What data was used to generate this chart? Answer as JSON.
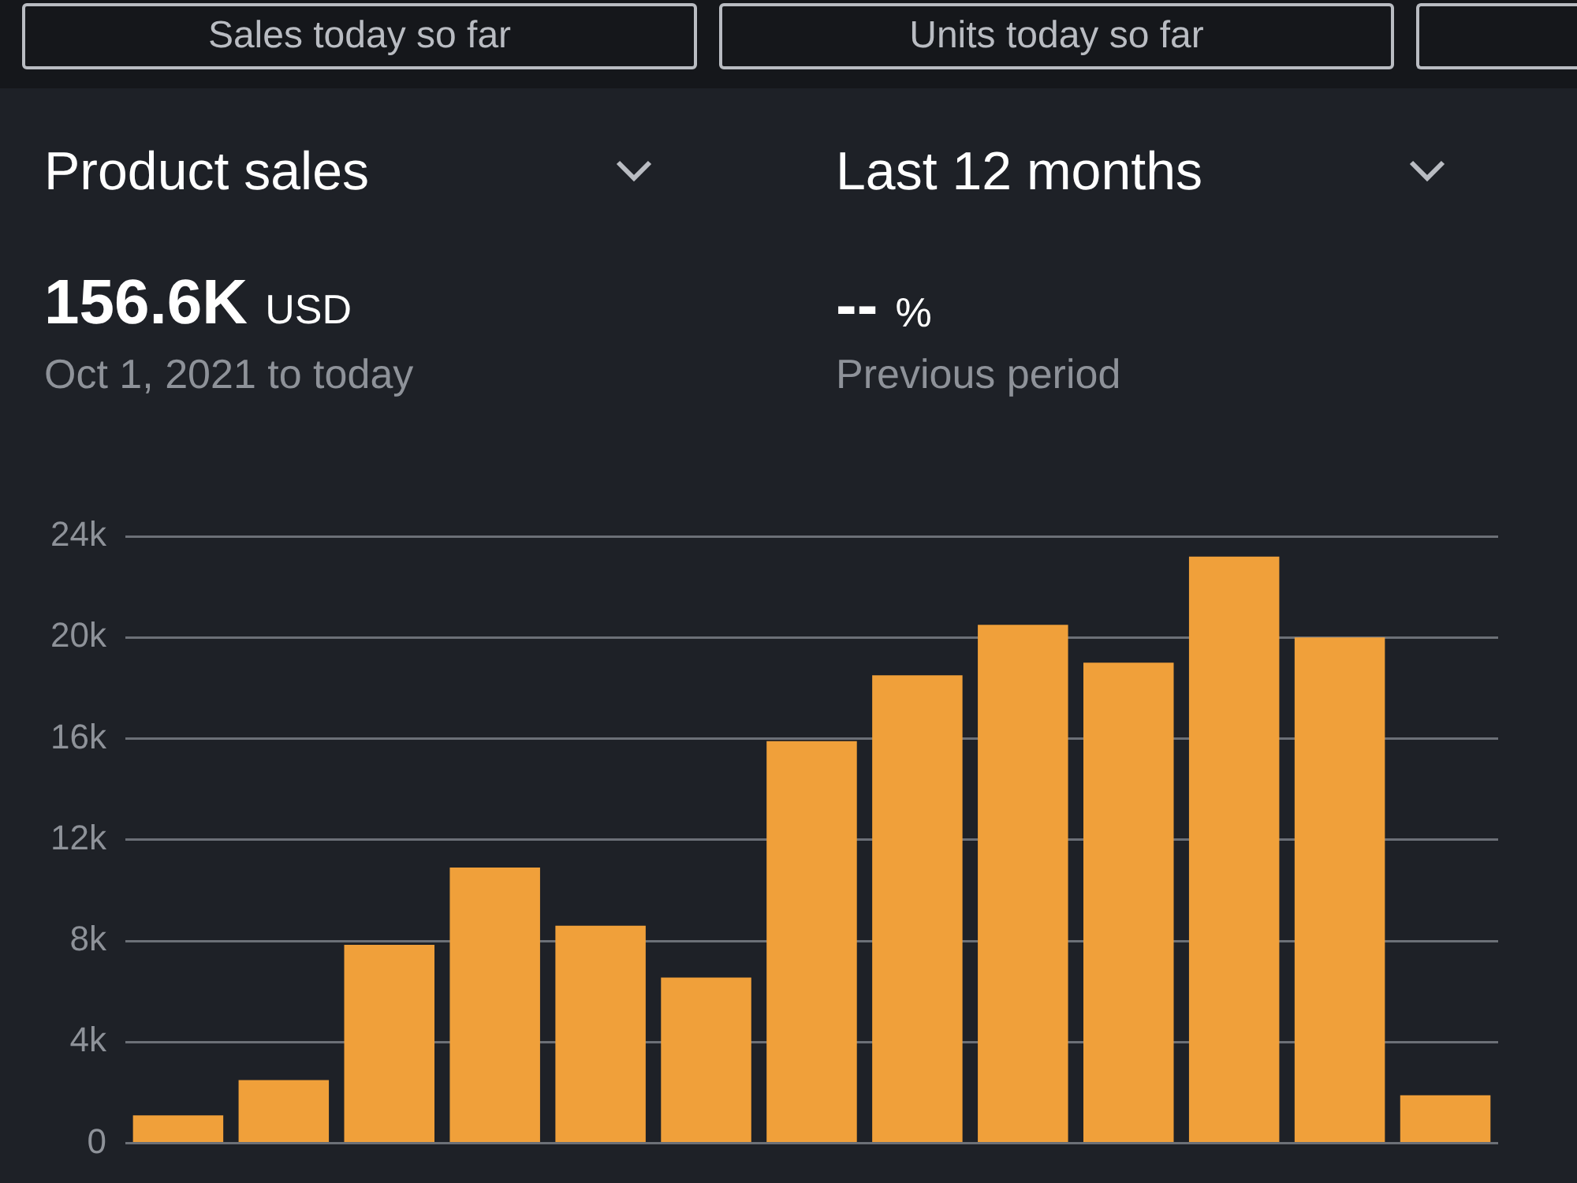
{
  "chart_data": {
    "type": "bar",
    "title": "Product sales",
    "subtitle": "Last 12 months",
    "annotations": [
      "Sales today so far",
      "Units today so far",
      "156.6K USD",
      "Oct 1, 2021 to today",
      "-- %",
      "Previous period"
    ],
    "categories": [
      null,
      null,
      null,
      null,
      null,
      null,
      null,
      null,
      null,
      null,
      null,
      null,
      null
    ],
    "values": [
      1100,
      2500,
      7850,
      10900,
      8600,
      6550,
      15900,
      18500,
      20500,
      19000,
      23200,
      20000,
      1900
    ],
    "color": "#f0a03a",
    "ylim": [
      0,
      24000
    ],
    "yticks": [
      {
        "value": 0,
        "label": "0"
      },
      {
        "value": 4000,
        "label": "4k"
      },
      {
        "value": 8000,
        "label": "8k"
      },
      {
        "value": 12000,
        "label": "12k"
      },
      {
        "value": 16000,
        "label": "16k"
      },
      {
        "value": 20000,
        "label": "20k"
      },
      {
        "value": 24000,
        "label": "24k"
      }
    ],
    "grid": "y",
    "tick_labels": "y"
  }
}
